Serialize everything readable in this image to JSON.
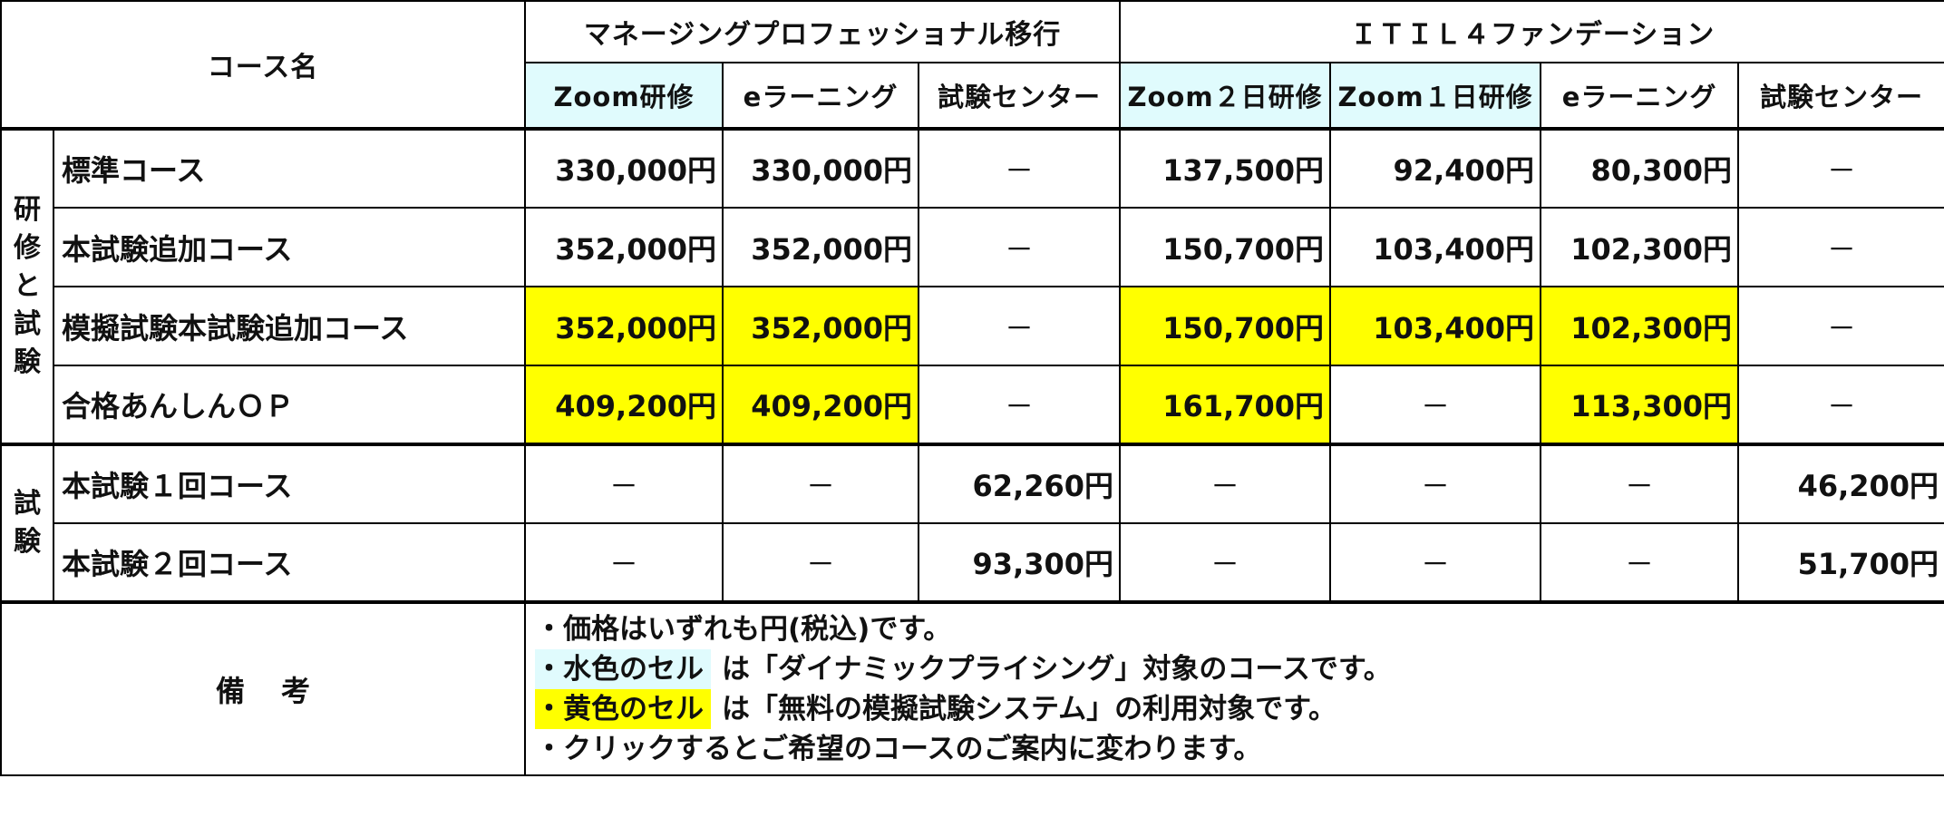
{
  "header": {
    "course_name": "コース名",
    "group_mp": "マネージングプロフェッショナル移行",
    "group_itil": "ＩＴＩＬ４ファンデーション",
    "columns": [
      "Zoom研修",
      "eラーニング",
      "試験センター",
      "Zoom２日研修",
      "Zoom１日研修",
      "eラーニング",
      "試験センター"
    ]
  },
  "sections": {
    "training_exam": [
      "研",
      "修",
      "と",
      "試",
      "験"
    ],
    "exam": [
      "試",
      "験"
    ]
  },
  "rows": [
    {
      "name": "標準コース",
      "cells": [
        "330,000円",
        "330,000円",
        "－",
        "137,500円",
        "92,400円",
        "80,300円",
        "－"
      ],
      "highlight": [
        false,
        false,
        false,
        false,
        false,
        false,
        false
      ]
    },
    {
      "name": "本試験追加コース",
      "cells": [
        "352,000円",
        "352,000円",
        "－",
        "150,700円",
        "103,400円",
        "102,300円",
        "－"
      ],
      "highlight": [
        false,
        false,
        false,
        false,
        false,
        false,
        false
      ]
    },
    {
      "name": "模擬試験本試験追加コース",
      "cells": [
        "352,000円",
        "352,000円",
        "－",
        "150,700円",
        "103,400円",
        "102,300円",
        "－"
      ],
      "highlight": [
        true,
        true,
        false,
        true,
        true,
        true,
        false
      ]
    },
    {
      "name": "合格あんしんＯＰ",
      "cells": [
        "409,200円",
        "409,200円",
        "－",
        "161,700円",
        "－",
        "113,300円",
        "－"
      ],
      "highlight": [
        true,
        true,
        false,
        true,
        false,
        true,
        false
      ]
    },
    {
      "name": "本試験１回コース",
      "cells": [
        "－",
        "－",
        "62,260円",
        "－",
        "－",
        "－",
        "46,200円"
      ],
      "highlight": [
        false,
        false,
        false,
        false,
        false,
        false,
        false
      ]
    },
    {
      "name": "本試験２回コース",
      "cells": [
        "－",
        "－",
        "93,300円",
        "－",
        "－",
        "－",
        "51,700円"
      ],
      "highlight": [
        false,
        false,
        false,
        false,
        false,
        false,
        false
      ]
    }
  ],
  "notes": {
    "label": "備考",
    "line1": "・価格はいずれも円(税込)です。",
    "line2_tag": "・水色のセル",
    "line2_text": "は「ダイナミックプライシング」対象のコースです。",
    "line3_tag": "・黄色のセル",
    "line3_text": "は「無料の模擬試験システム」の利用対象です。",
    "line4": "・クリックするとご希望のコースのご案内に変わります。"
  },
  "colors": {
    "cyan_cell": "#e0fbfd",
    "yellow_cell": "#ffff00",
    "border": "#000000"
  }
}
